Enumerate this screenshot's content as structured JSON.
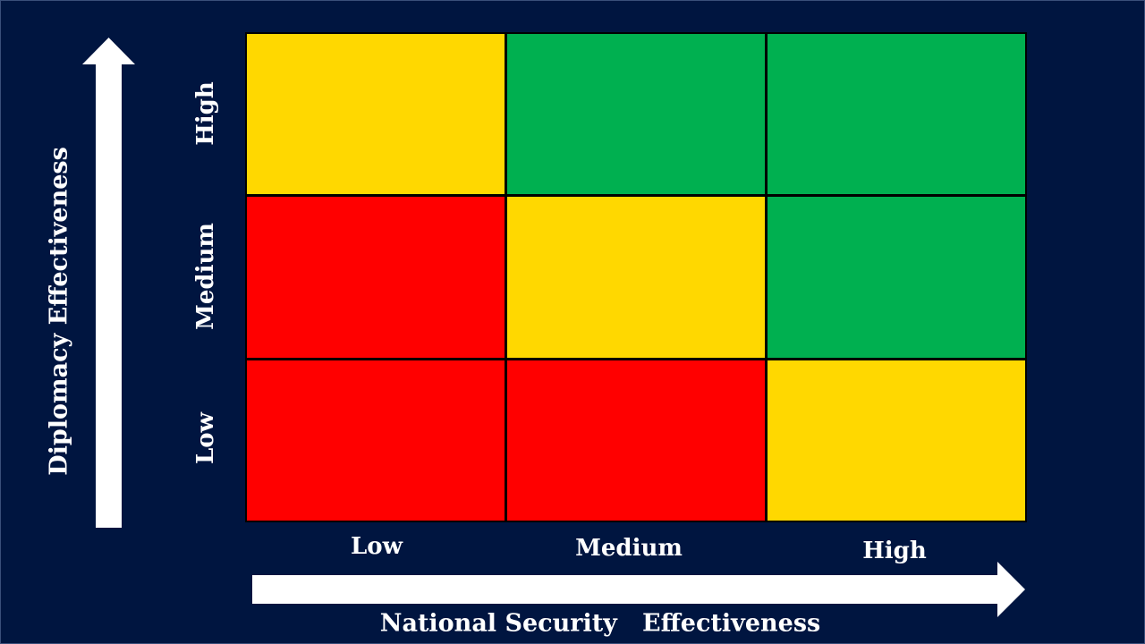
{
  "colors": {
    "background": "#001540",
    "red": "#FF0000",
    "yellow": "#FFD800",
    "green": "#00B050",
    "grid_line": "#000000",
    "text": "#FFFFFF"
  },
  "y_axis": {
    "title": "Diplomacy Effectiveness",
    "ticks": {
      "high": "High",
      "medium": "Medium",
      "low": "Low"
    }
  },
  "x_axis": {
    "title": "National Security   Effectiveness",
    "ticks": {
      "low": "Low",
      "medium": "Medium",
      "high": "High"
    }
  },
  "matrix": {
    "rows_top_to_bottom": [
      "High",
      "Medium",
      "Low"
    ],
    "columns_left_to_right": [
      "Low",
      "Medium",
      "High"
    ],
    "cell_colors": [
      [
        "yellow",
        "green",
        "green"
      ],
      [
        "red",
        "yellow",
        "green"
      ],
      [
        "red",
        "red",
        "yellow"
      ]
    ]
  }
}
